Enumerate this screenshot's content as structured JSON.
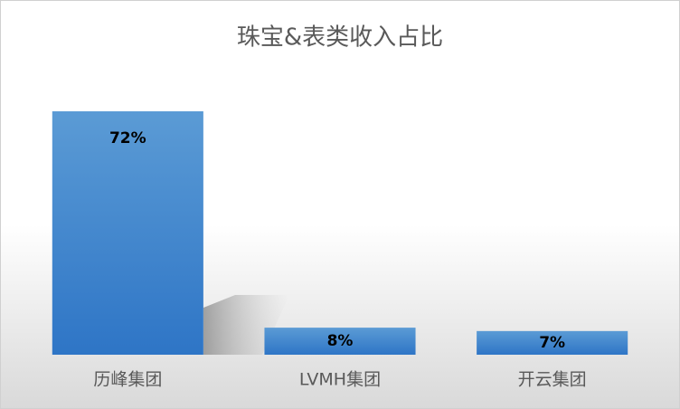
{
  "chart_data": {
    "type": "bar",
    "title": "珠宝&表类收入占比",
    "categories": [
      "历峰集团",
      "LVMH集团",
      "开云集团"
    ],
    "values": [
      72,
      8,
      7
    ],
    "value_labels": [
      "72%",
      "8%",
      "7%"
    ],
    "color": "#4a8ad4"
  }
}
